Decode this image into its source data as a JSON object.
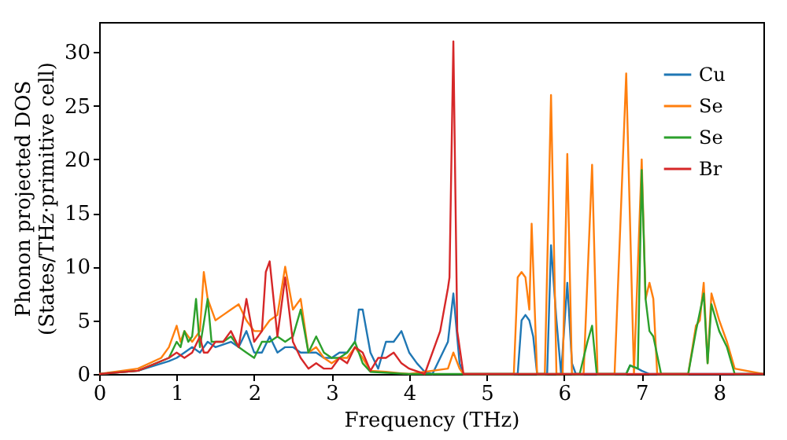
{
  "chart_data": {
    "type": "line",
    "xlabel": "Frequency (THz)",
    "ylabel": "Phonon projected DOS\n(States/THz·primitive cell)",
    "xlim": [
      0,
      8.57
    ],
    "ylim": [
      0,
      32.8
    ],
    "xticks": [
      0,
      1,
      2,
      3,
      4,
      5,
      6,
      7,
      8
    ],
    "yticks": [
      0,
      5,
      10,
      15,
      20,
      25,
      30
    ],
    "grid": false,
    "legend": "top right",
    "marker": "none",
    "line_style": "solid",
    "series": [
      {
        "name": "Cu",
        "color": "#1f77b4",
        "x": [
          0,
          0.5,
          0.9,
          1.0,
          1.1,
          1.2,
          1.3,
          1.4,
          1.5,
          1.7,
          1.8,
          1.9,
          2.0,
          2.1,
          2.2,
          2.3,
          2.4,
          2.5,
          2.6,
          2.8,
          2.9,
          3.0,
          3.1,
          3.2,
          3.3,
          3.35,
          3.4,
          3.5,
          3.6,
          3.7,
          3.8,
          3.9,
          4.0,
          4.1,
          4.2,
          4.3,
          4.5,
          4.57,
          4.65,
          4.7,
          5.4,
          5.45,
          5.5,
          5.55,
          5.6,
          5.65,
          5.78,
          5.83,
          5.9,
          5.96,
          6.04,
          6.1,
          6.15,
          6.8,
          6.85,
          6.95,
          7.0,
          7.1,
          8.57
        ],
        "values": [
          0,
          0.3,
          1.2,
          1.5,
          2,
          2.5,
          2,
          3,
          2.5,
          3,
          2.5,
          4,
          2,
          2,
          3.5,
          2,
          2.5,
          2.5,
          2,
          2,
          1.5,
          1.5,
          2,
          2,
          3,
          6,
          6,
          2,
          0.5,
          3,
          3,
          4,
          2,
          1,
          0.2,
          0,
          3,
          7.5,
          1,
          0,
          0,
          5,
          5.5,
          5,
          3.5,
          0,
          0,
          12,
          5,
          0,
          8.5,
          1,
          0,
          0,
          0.8,
          0.5,
          0.3,
          0,
          0
        ]
      },
      {
        "name": "Se",
        "color": "#ff7f0e",
        "x": [
          0,
          0.5,
          0.8,
          0.9,
          1.0,
          1.05,
          1.1,
          1.2,
          1.3,
          1.35,
          1.4,
          1.5,
          1.6,
          1.7,
          1.8,
          1.9,
          2.0,
          2.1,
          2.2,
          2.3,
          2.4,
          2.5,
          2.6,
          2.7,
          2.8,
          2.9,
          3.0,
          3.1,
          3.2,
          3.3,
          3.4,
          3.5,
          3.7,
          4.0,
          4.5,
          4.57,
          4.65,
          4.7,
          5.35,
          5.4,
          5.45,
          5.5,
          5.55,
          5.58,
          5.65,
          5.75,
          5.83,
          5.9,
          5.98,
          6.04,
          6.1,
          6.25,
          6.36,
          6.43,
          6.65,
          6.8,
          6.9,
          7.0,
          7.05,
          7.1,
          7.15,
          7.2,
          7.6,
          7.7,
          7.75,
          7.8,
          7.85,
          7.9,
          8.0,
          8.05,
          8.1,
          8.2,
          8.57
        ],
        "values": [
          0,
          0.5,
          1.5,
          2.5,
          4.5,
          3,
          4,
          3,
          4,
          9.5,
          7,
          5,
          5.5,
          6,
          6.5,
          5,
          4,
          4,
          5,
          5.5,
          10,
          6,
          7,
          2,
          2.5,
          1.5,
          1,
          1.5,
          1.5,
          2.5,
          1.5,
          0.3,
          0.2,
          0,
          0.5,
          2,
          0.5,
          0,
          0,
          9,
          9.5,
          9,
          6,
          14,
          0,
          0,
          26,
          0,
          0,
          20.5,
          0,
          0,
          19.5,
          0,
          0,
          28,
          0,
          20,
          7,
          8.5,
          7,
          0,
          0,
          4.5,
          5,
          8.5,
          1,
          7.5,
          5,
          4,
          3,
          0.5,
          0
        ]
      },
      {
        "name": "Se",
        "color": "#2ca02c",
        "x": [
          0,
          0.5,
          0.9,
          1.0,
          1.05,
          1.1,
          1.15,
          1.2,
          1.25,
          1.3,
          1.4,
          1.45,
          1.5,
          1.6,
          1.7,
          1.8,
          1.9,
          2.0,
          2.1,
          2.2,
          2.3,
          2.4,
          2.5,
          2.6,
          2.7,
          2.8,
          2.9,
          3.0,
          3.1,
          3.2,
          3.3,
          3.4,
          3.5,
          4.0,
          6.2,
          6.3,
          6.36,
          6.42,
          6.8,
          6.85,
          6.95,
          7.0,
          7.05,
          7.1,
          7.15,
          7.25,
          7.6,
          7.7,
          7.8,
          7.85,
          7.9,
          8.0,
          8.1,
          8.2,
          8.57
        ],
        "values": [
          0,
          0.3,
          1.5,
          3,
          2.5,
          4,
          3,
          3.5,
          7,
          2.5,
          7,
          3,
          3,
          3,
          3.5,
          2.5,
          2,
          1.5,
          3,
          3,
          3.5,
          3,
          3.5,
          6,
          2,
          3.5,
          2,
          1.5,
          1.5,
          2,
          3,
          1,
          0.2,
          0,
          0,
          3,
          4.5,
          0,
          0,
          0.8,
          0.5,
          19,
          7,
          4,
          3.5,
          0,
          0,
          4,
          7.5,
          1,
          6.5,
          4,
          2.5,
          0,
          0
        ]
      },
      {
        "name": "Br",
        "color": "#d62728",
        "x": [
          0,
          0.5,
          0.9,
          1.0,
          1.1,
          1.2,
          1.3,
          1.35,
          1.4,
          1.5,
          1.6,
          1.7,
          1.8,
          1.9,
          2.0,
          2.1,
          2.15,
          2.2,
          2.3,
          2.4,
          2.45,
          2.5,
          2.6,
          2.7,
          2.8,
          2.9,
          3.0,
          3.1,
          3.2,
          3.3,
          3.4,
          3.5,
          3.6,
          3.7,
          3.8,
          3.9,
          4.0,
          4.2,
          4.4,
          4.5,
          4.52,
          4.57,
          4.62,
          4.7,
          8.57
        ],
        "values": [
          0,
          0.3,
          1.5,
          2,
          1.5,
          2,
          3.5,
          2,
          2,
          3,
          3,
          4,
          2.5,
          7,
          3,
          4,
          9.5,
          10.5,
          3.5,
          9,
          6,
          3,
          1.5,
          0.5,
          1,
          0.5,
          0.5,
          1.5,
          1,
          2.5,
          2,
          0.3,
          1.5,
          1.5,
          2,
          1,
          0.5,
          0,
          4,
          8,
          9,
          31,
          4,
          0,
          0
        ]
      }
    ]
  }
}
